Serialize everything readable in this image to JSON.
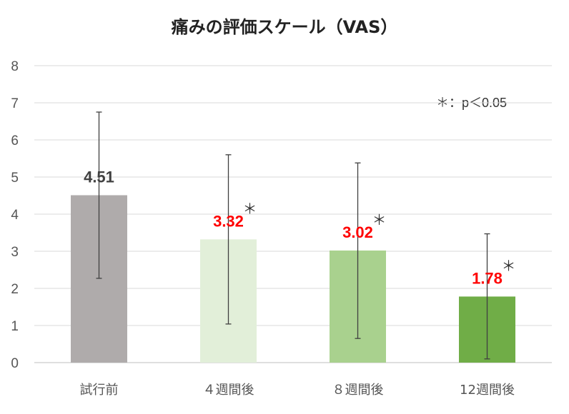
{
  "chart_data": {
    "type": "bar",
    "title": "痛みの評価スケール（VAS）",
    "annotation": "＊：p＜0.05",
    "xlabel": "",
    "ylabel": "",
    "ylim": [
      0,
      8
    ],
    "yticks": [
      0,
      1,
      2,
      3,
      4,
      5,
      6,
      7,
      8
    ],
    "grid": true,
    "categories": [
      "試行前",
      "４週間後",
      "８週間後",
      "12週間後"
    ],
    "values": [
      4.51,
      3.32,
      3.02,
      1.78
    ],
    "data_labels": [
      "4.51",
      "3.32",
      "3.02",
      "1.78"
    ],
    "error_low": [
      2.27,
      1.04,
      0.65,
      0.1
    ],
    "error_high": [
      6.75,
      5.6,
      5.38,
      3.47
    ],
    "significance_marker": "＊",
    "significant": [
      false,
      true,
      true,
      true
    ],
    "bar_colors": [
      "#afabab",
      "#e2efd9",
      "#a9d18e",
      "#70ad47"
    ],
    "label_colors": [
      "#404040",
      "#ff0000",
      "#ff0000",
      "#ff0000"
    ],
    "error_bar_color": "#404040",
    "grid_color": "#d9d9d9"
  }
}
